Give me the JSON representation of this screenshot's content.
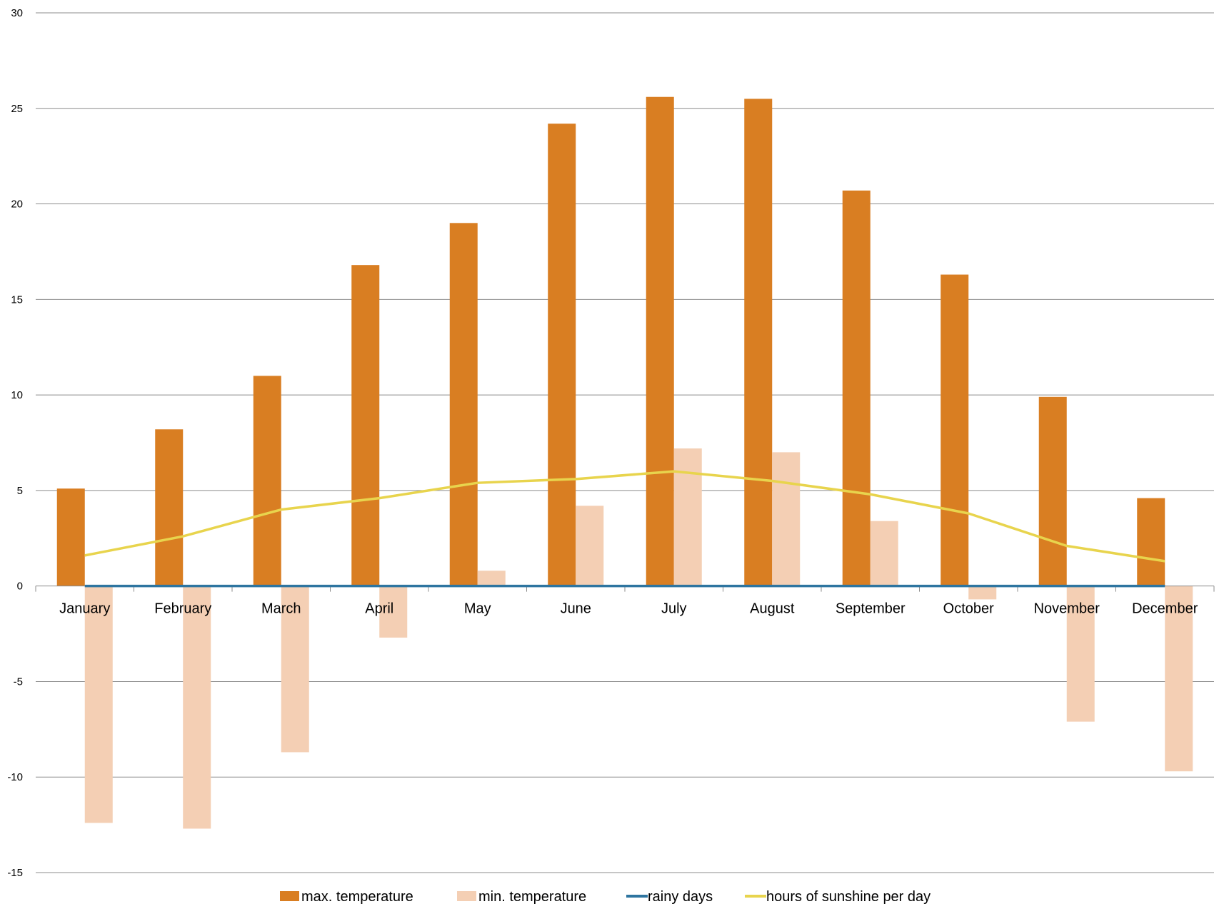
{
  "chart_data": {
    "type": "bar",
    "title": "",
    "xlabel": "",
    "ylabel": "",
    "ylim": [
      -15,
      30
    ],
    "yticks": [
      30,
      25,
      20,
      15,
      10,
      5,
      0,
      -5,
      -10,
      -15
    ],
    "ytick_labels": [
      "30",
      "25",
      "20",
      "15",
      "10",
      "5",
      "0",
      "-5",
      "-10",
      "-15"
    ],
    "grid": true,
    "legend_position": "bottom",
    "categories": [
      "January",
      "February",
      "March",
      "April",
      "May",
      "June",
      "July",
      "August",
      "September",
      "October",
      "November",
      "December"
    ],
    "series": [
      {
        "name": "max.  temperature",
        "kind": "bar",
        "color": "#D97E22",
        "values": [
          5.1,
          8.2,
          11.0,
          16.8,
          19.0,
          24.2,
          25.6,
          25.5,
          20.7,
          16.3,
          9.9,
          4.6
        ]
      },
      {
        "name": "min. temperature",
        "kind": "bar",
        "color": "#F4CFB4",
        "values": [
          -12.4,
          -12.7,
          -8.7,
          -2.7,
          0.8,
          4.2,
          7.2,
          7.0,
          3.4,
          -0.7,
          -7.1,
          -9.7
        ]
      },
      {
        "name": "rainy days",
        "kind": "line",
        "color": "#2E75A0",
        "values": [
          0,
          0,
          0,
          0,
          0,
          0,
          0,
          0,
          0,
          0,
          0,
          0
        ]
      },
      {
        "name": "hours of sunshine per day",
        "kind": "line",
        "color": "#E8D44D",
        "values": [
          1.6,
          2.6,
          4.0,
          4.6,
          5.4,
          5.6,
          6.0,
          5.5,
          4.8,
          3.8,
          2.1,
          1.3
        ]
      }
    ]
  }
}
